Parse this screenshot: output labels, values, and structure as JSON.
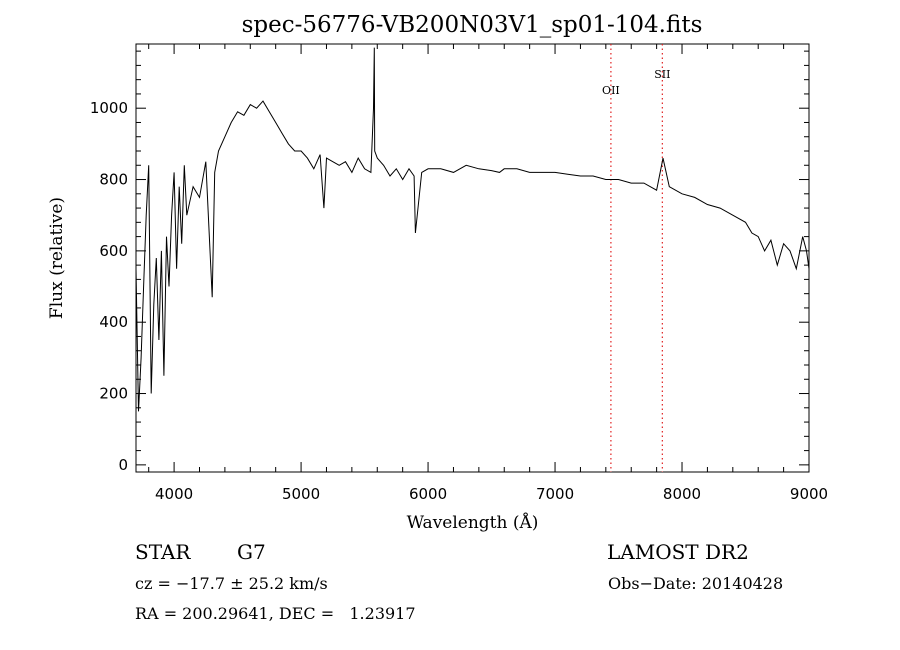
{
  "chart_data": {
    "type": "line",
    "title": "spec-56776-VB200N03V1_sp01-104.fits",
    "xlabel": "Wavelength (Å)",
    "ylabel": "Flux (relative)",
    "xlim": [
      3700,
      9000
    ],
    "ylim": [
      -20,
      1180
    ],
    "x_ticks": [
      4000,
      5000,
      6000,
      7000,
      8000,
      9000
    ],
    "y_ticks": [
      0,
      200,
      400,
      600,
      800,
      1000
    ],
    "grid": false,
    "series": [
      {
        "x": [
          3700,
          3720,
          3740,
          3760,
          3780,
          3800,
          3820,
          3840,
          3860,
          3880,
          3900,
          3920,
          3940,
          3960,
          3980,
          4000,
          4020,
          4040,
          4060,
          4080,
          4100,
          4150,
          4200,
          4250,
          4300,
          4320,
          4350,
          4400,
          4450,
          4500,
          4550,
          4600,
          4650,
          4700,
          4750,
          4800,
          4850,
          4900,
          4950,
          5000,
          5050,
          5100,
          5150,
          5180,
          5200,
          5250,
          5300,
          5350,
          5400,
          5450,
          5500,
          5550,
          5570,
          5577,
          5580,
          5600,
          5650,
          5700,
          5750,
          5800,
          5850,
          5890,
          5900,
          5950,
          6000,
          6100,
          6200,
          6300,
          6400,
          6500,
          6563,
          6600,
          6700,
          6800,
          6900,
          7000,
          7100,
          7200,
          7300,
          7400,
          7500,
          7600,
          7700,
          7800,
          7850,
          7900,
          8000,
          8100,
          8200,
          8300,
          8400,
          8500,
          8550,
          8600,
          8650,
          8700,
          8750,
          8800,
          8850,
          8900,
          8950,
          8980,
          9000
        ],
        "y": [
          550,
          150,
          300,
          500,
          700,
          840,
          200,
          450,
          580,
          350,
          600,
          250,
          640,
          500,
          700,
          820,
          550,
          780,
          620,
          840,
          700,
          780,
          750,
          850,
          470,
          820,
          880,
          920,
          960,
          990,
          980,
          1010,
          1000,
          1020,
          990,
          960,
          930,
          900,
          880,
          880,
          860,
          830,
          870,
          720,
          860,
          850,
          840,
          850,
          820,
          860,
          830,
          820,
          1000,
          1170,
          880,
          860,
          840,
          810,
          830,
          800,
          830,
          810,
          650,
          820,
          830,
          830,
          820,
          840,
          830,
          825,
          820,
          830,
          830,
          820,
          820,
          820,
          815,
          810,
          810,
          800,
          800,
          790,
          790,
          770,
          860,
          780,
          760,
          750,
          730,
          720,
          700,
          680,
          650,
          640,
          600,
          630,
          560,
          620,
          600,
          550,
          640,
          600,
          550
        ]
      }
    ],
    "annotations": [
      {
        "label": "OII",
        "x": 7440
      },
      {
        "label": "SII",
        "x": 7845
      }
    ]
  },
  "info": {
    "object_class": "STAR",
    "subclass": "G7",
    "survey": "LAMOST DR2",
    "velocity": "cz = −17.7 ± 25.2 km/s",
    "obs_date": "Obs−Date: 20140428",
    "coords": "RA = 200.29641, DEC =   1.23917"
  }
}
